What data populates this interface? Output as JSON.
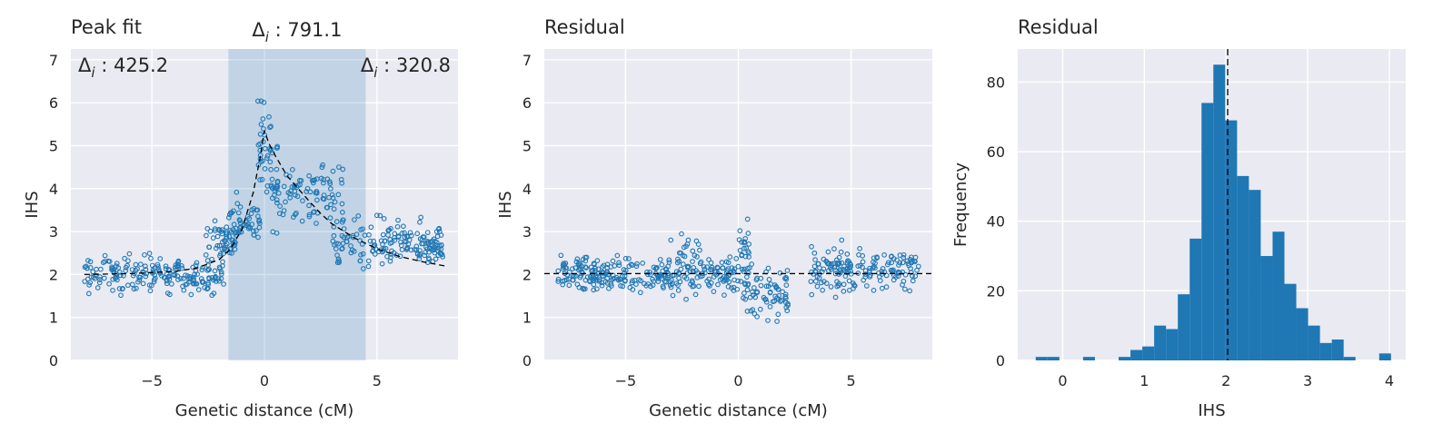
{
  "chart_data": [
    {
      "type": "scatter",
      "title": "Peak fit",
      "xlabel": "Genetic distance (cM)",
      "ylabel": "IHS",
      "xlim": [
        -8.6,
        8.6
      ],
      "ylim": [
        0,
        7.25
      ],
      "xticks": [
        -5,
        0,
        5
      ],
      "xtick_labels": [
        "−5",
        "0",
        "5"
      ],
      "yticks": [
        0,
        1,
        2,
        3,
        4,
        5,
        6,
        7
      ],
      "ytick_labels": [
        "0",
        "1",
        "2",
        "3",
        "4",
        "5",
        "6",
        "7"
      ],
      "grid": true,
      "highlight_span": [
        -1.6,
        4.5
      ],
      "annotations": [
        {
          "text_base": "Δ",
          "text_sub": "i",
          "text_value": " : 425.2",
          "position": "top-left"
        },
        {
          "text_base": "Δ",
          "text_sub": "i",
          "text_value": " : 791.1",
          "position": "above span"
        },
        {
          "text_base": "Δ",
          "text_sub": "i",
          "text_value": " : 320.8",
          "position": "top-right"
        }
      ],
      "point_color": "#1f77b4",
      "fit_line_color": "#000000",
      "fit_curve": {
        "x": [
          -8.0,
          -6.0,
          -4.0,
          -3.0,
          -2.0,
          -1.5,
          -1.0,
          -0.5,
          -0.2,
          0.0,
          0.2,
          0.5,
          1.0,
          1.5,
          2.0,
          2.5,
          3.0,
          4.0,
          5.0,
          6.0,
          7.0,
          8.0
        ],
        "y": [
          2.0,
          2.02,
          2.07,
          2.15,
          2.35,
          2.6,
          3.05,
          3.9,
          4.7,
          5.35,
          5.05,
          4.75,
          4.3,
          4.0,
          3.7,
          3.42,
          3.18,
          2.85,
          2.6,
          2.42,
          2.3,
          2.2
        ]
      },
      "point_clusters": [
        {
          "x_range": [
            -8.0,
            -1.8
          ],
          "y_center": 2.0,
          "y_spread": 0.35,
          "n": 200
        },
        {
          "x_range": [
            -2.6,
            -1.2
          ],
          "y_center": 2.8,
          "y_spread": 0.35,
          "n": 45
        },
        {
          "x_range": [
            -1.8,
            -0.2
          ],
          "y_center": 3.2,
          "y_spread": 0.45,
          "n": 55
        },
        {
          "x_range": [
            -0.3,
            0.6
          ],
          "y_center": 4.8,
          "y_spread": 1.2,
          "n": 45
        },
        {
          "x_range": [
            0.3,
            3.5
          ],
          "y_center": 3.9,
          "y_spread": 0.55,
          "n": 90
        },
        {
          "x_range": [
            3.0,
            8.0
          ],
          "y_center": 2.7,
          "y_spread": 0.45,
          "n": 180
        }
      ]
    },
    {
      "type": "scatter",
      "title": "Residual",
      "xlabel": "Genetic distance (cM)",
      "ylabel": "IHS",
      "xlim": [
        -8.6,
        8.6
      ],
      "ylim": [
        0,
        7.25
      ],
      "xticks": [
        -5,
        0,
        5
      ],
      "xtick_labels": [
        "−5",
        "0",
        "5"
      ],
      "yticks": [
        0,
        1,
        2,
        3,
        4,
        5,
        6,
        7
      ],
      "ytick_labels": [
        "0",
        "1",
        "2",
        "3",
        "4",
        "5",
        "6",
        "7"
      ],
      "grid": true,
      "reference_line_y": 2.02,
      "point_color": "#1f77b4",
      "point_clusters": [
        {
          "x_range": [
            -8.0,
            -3.0
          ],
          "y_center": 2.0,
          "y_spread": 0.3,
          "n": 190
        },
        {
          "x_range": [
            -3.0,
            -1.6
          ],
          "y_center": 2.2,
          "y_spread": 0.55,
          "n": 60
        },
        {
          "x_range": [
            -1.6,
            0.0
          ],
          "y_center": 2.0,
          "y_spread": 0.4,
          "n": 60
        },
        {
          "x_range": [
            0.0,
            0.5
          ],
          "y_center": 2.6,
          "y_spread": 0.8,
          "n": 25
        },
        {
          "x_range": [
            0.2,
            2.2
          ],
          "y_center": 1.6,
          "y_spread": 0.55,
          "n": 75
        },
        {
          "x_range": [
            3.2,
            8.0
          ],
          "y_center": 2.1,
          "y_spread": 0.4,
          "n": 170
        }
      ]
    },
    {
      "type": "bar",
      "subtype": "histogram",
      "title": "Residual",
      "xlabel": "IHS",
      "ylabel": "Frequency",
      "xlim": [
        -0.55,
        4.2
      ],
      "ylim": [
        0,
        89.5
      ],
      "xticks": [
        0,
        1,
        2,
        3,
        4
      ],
      "xtick_labels": [
        "0",
        "1",
        "2",
        "3",
        "4"
      ],
      "yticks": [
        0,
        20,
        40,
        60,
        80
      ],
      "ytick_labels": [
        "0",
        "20",
        "40",
        "60",
        "80"
      ],
      "grid": true,
      "reference_line_x": 2.02,
      "bar_color": "#1f77b4",
      "bin_start": -0.33,
      "bin_width": 0.145,
      "values": [
        1,
        1,
        0,
        0,
        1,
        0,
        0,
        1,
        3,
        4,
        10,
        9,
        19,
        35,
        74,
        85,
        69,
        53,
        49,
        30,
        37,
        22,
        15,
        10,
        5,
        6,
        1,
        0,
        0,
        2
      ]
    }
  ]
}
